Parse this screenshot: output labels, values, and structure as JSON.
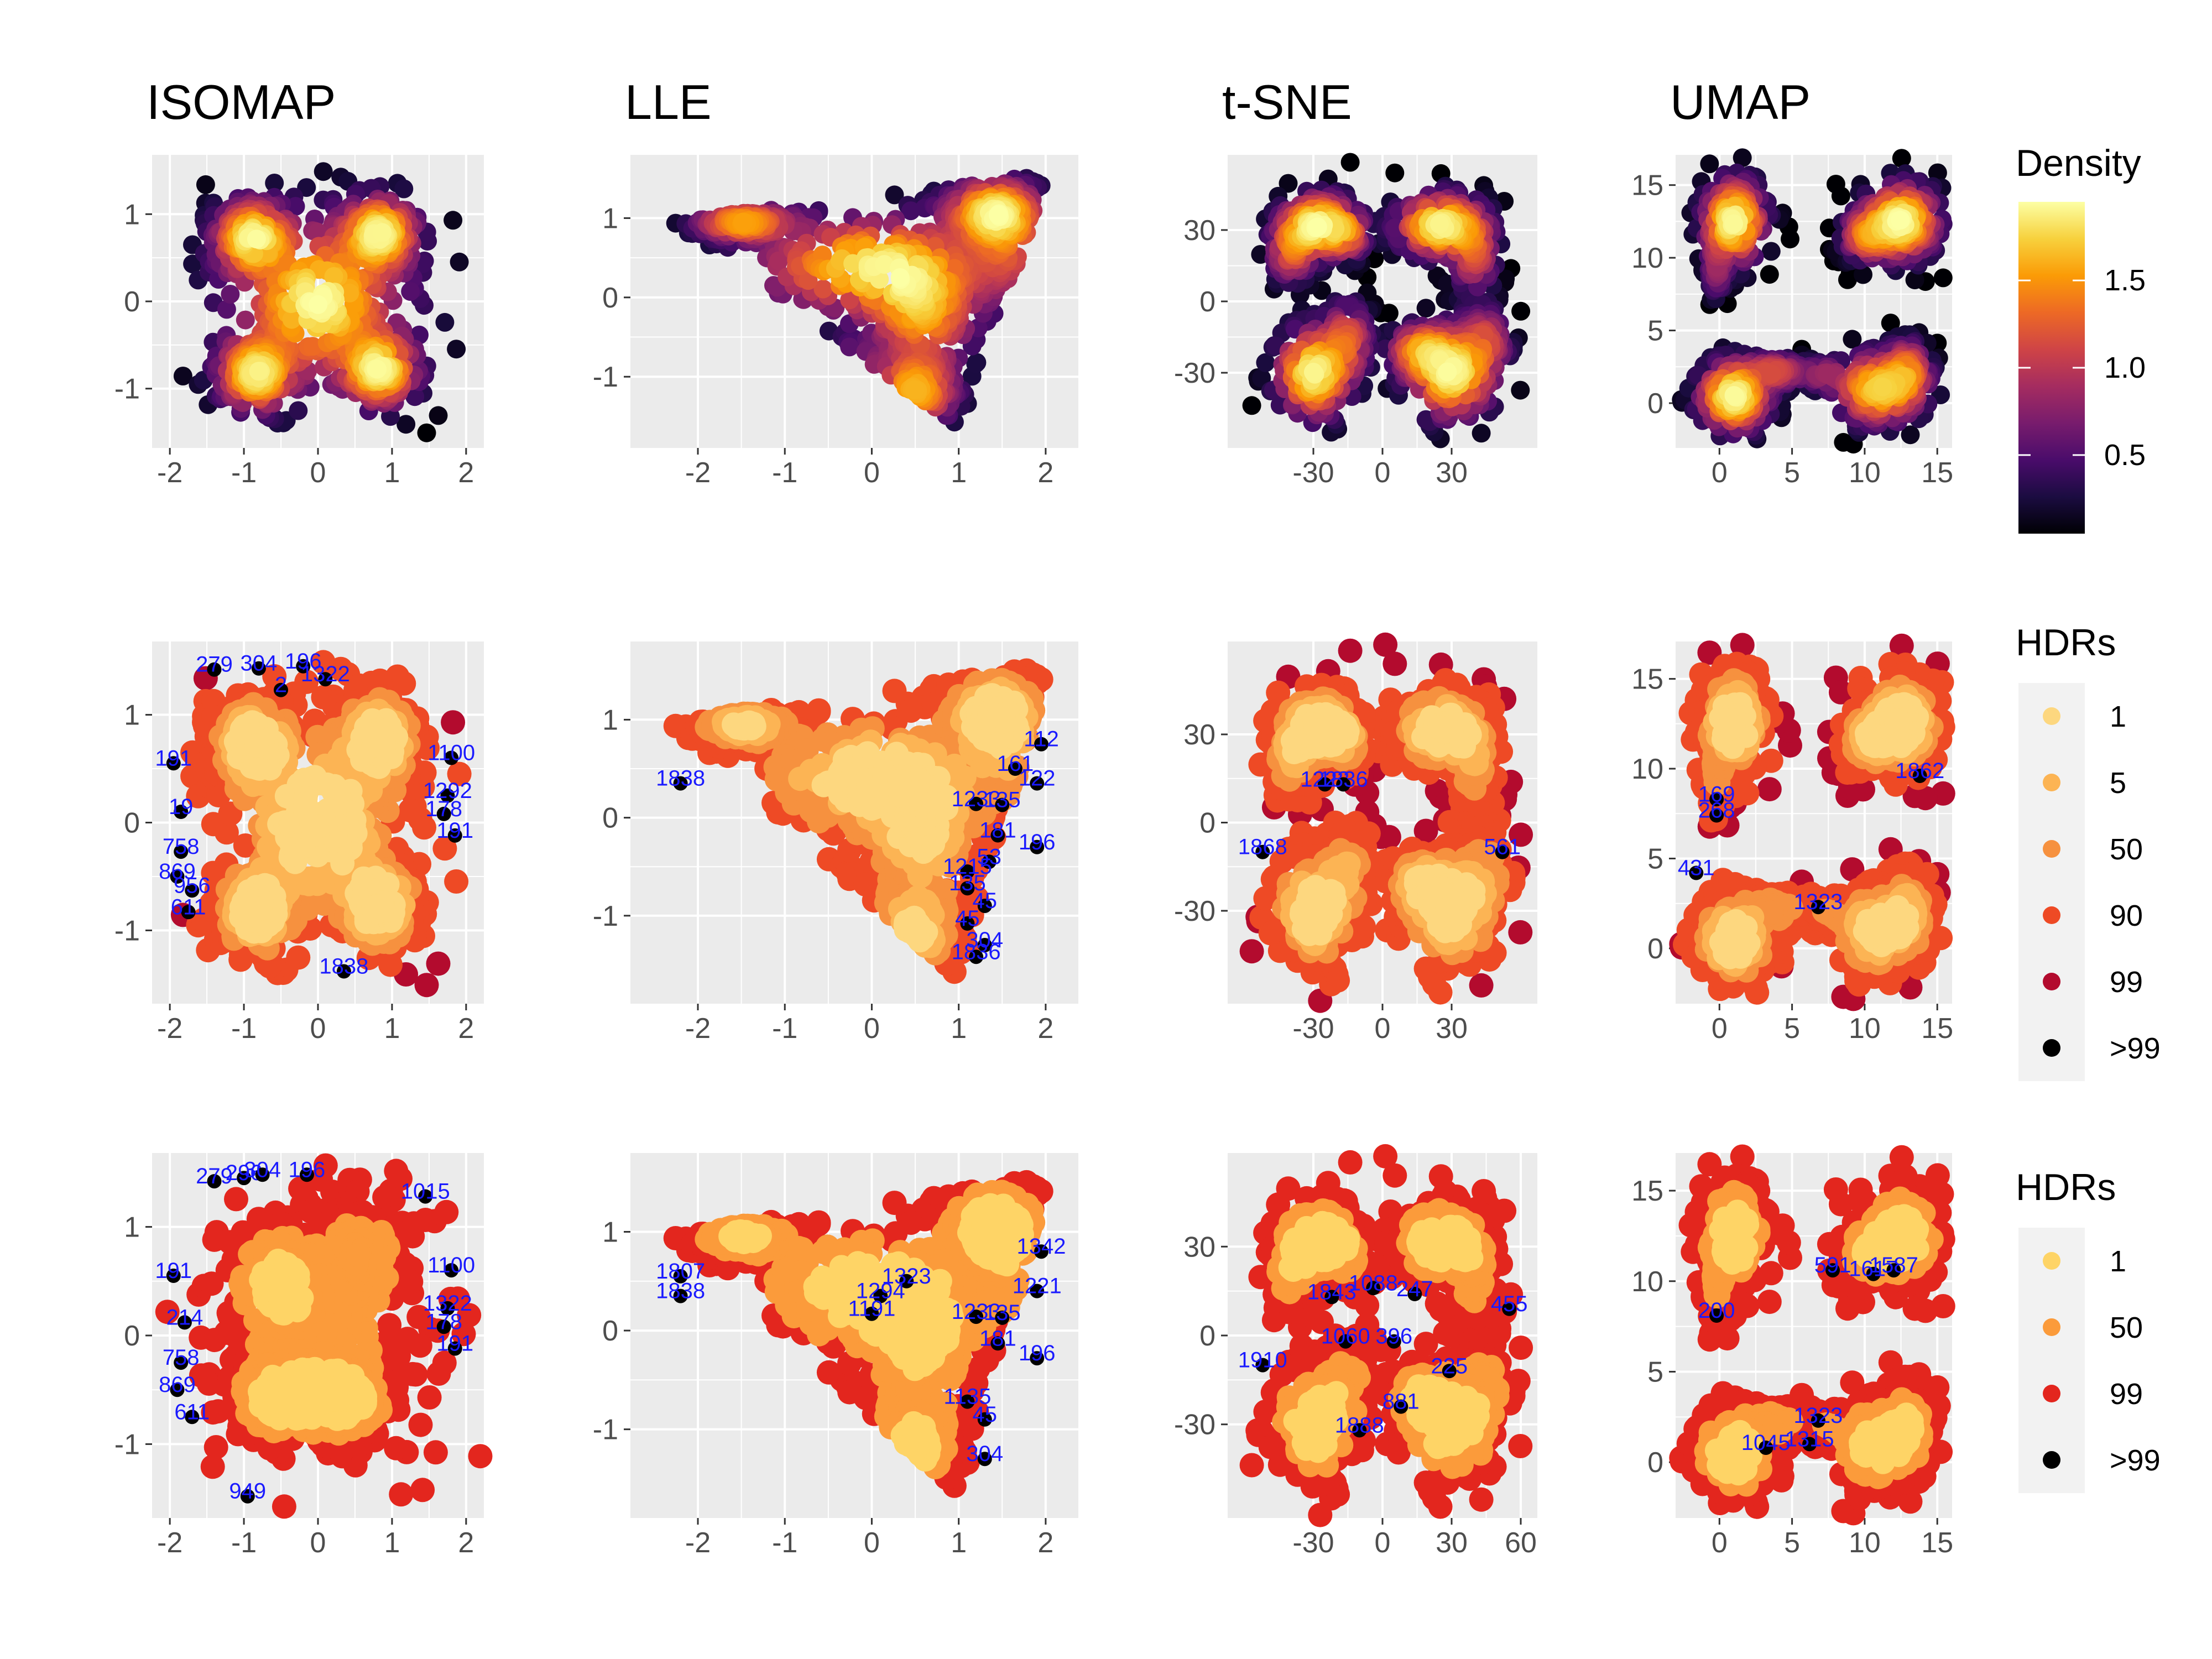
{
  "chart_data": [
    {
      "type": "scatter",
      "title": "ISOMAP",
      "row": 0,
      "col": 0,
      "color_by": "density",
      "x_ticks": [
        "-2",
        "-1",
        "0",
        "1",
        "2"
      ],
      "y_ticks": [
        "-1",
        "0",
        "1"
      ],
      "xlim": [
        -2,
        2
      ],
      "ylim": [
        -1.5,
        1.5
      ],
      "shape": "isomap"
    },
    {
      "type": "scatter",
      "title": "LLE",
      "row": 0,
      "col": 1,
      "color_by": "density",
      "x_ticks": [
        "-2",
        "-1",
        "0",
        "1",
        "2"
      ],
      "y_ticks": [
        "-1",
        "0",
        "1"
      ],
      "xlim": [
        -2.5,
        2.1
      ],
      "ylim": [
        -1.7,
        1.6
      ],
      "shape": "lle"
    },
    {
      "type": "scatter",
      "title": "t-SNE",
      "row": 0,
      "col": 2,
      "color_by": "density",
      "x_ticks": [
        "-30",
        "0",
        "30"
      ],
      "y_ticks": [
        "-30",
        "0",
        "30"
      ],
      "xlim": [
        -60,
        60
      ],
      "ylim": [
        -55,
        55
      ],
      "shape": "tsne"
    },
    {
      "type": "scatter",
      "title": "UMAP",
      "row": 0,
      "col": 3,
      "color_by": "density",
      "x_ticks": [
        "0",
        "5",
        "10",
        "15"
      ],
      "y_ticks": [
        "0",
        "5",
        "10",
        "15"
      ],
      "xlim": [
        -2,
        15
      ],
      "ylim": [
        -2,
        16
      ],
      "shape": "umap"
    },
    {
      "type": "scatter",
      "title": "",
      "row": 1,
      "col": 0,
      "color_by": "hdr6",
      "x_ticks": [
        "-2",
        "-1",
        "0",
        "1",
        "2"
      ],
      "y_ticks": [
        "-1",
        "0",
        "1"
      ],
      "xlim": [
        -2,
        2
      ],
      "ylim": [
        -1.5,
        1.5
      ],
      "shape": "isomap",
      "outliers": [
        {
          "x": -1.4,
          "y": 1.42,
          "label": "279"
        },
        {
          "x": -0.8,
          "y": 1.43,
          "label": "304"
        },
        {
          "x": -0.2,
          "y": 1.45,
          "label": "196"
        },
        {
          "x": -0.5,
          "y": 1.23,
          "label": "2"
        },
        {
          "x": 0.1,
          "y": 1.33,
          "label": "1322"
        },
        {
          "x": -1.95,
          "y": 0.55,
          "label": "191"
        },
        {
          "x": -1.85,
          "y": 0.1,
          "label": "19"
        },
        {
          "x": -1.85,
          "y": -0.27,
          "label": "758"
        },
        {
          "x": -1.9,
          "y": -0.5,
          "label": "869"
        },
        {
          "x": -1.7,
          "y": -0.63,
          "label": "956"
        },
        {
          "x": -1.75,
          "y": -0.83,
          "label": "611"
        },
        {
          "x": 0.35,
          "y": -1.38,
          "label": "1838"
        },
        {
          "x": 1.8,
          "y": 0.6,
          "label": "1100"
        },
        {
          "x": 1.75,
          "y": 0.25,
          "label": "1292"
        },
        {
          "x": 1.7,
          "y": 0.08,
          "label": "178"
        },
        {
          "x": 1.85,
          "y": -0.12,
          "label": "191"
        }
      ]
    },
    {
      "type": "scatter",
      "title": "",
      "row": 1,
      "col": 1,
      "color_by": "hdr6",
      "x_ticks": [
        "-2",
        "-1",
        "0",
        "1",
        "2"
      ],
      "y_ticks": [
        "-1",
        "0",
        "1"
      ],
      "xlim": [
        -2.5,
        2.1
      ],
      "ylim": [
        -1.7,
        1.6
      ],
      "shape": "lle",
      "outliers": [
        {
          "x": -2.2,
          "y": 0.35,
          "label": "1838"
        },
        {
          "x": 1.2,
          "y": 0.14,
          "label": "1233"
        },
        {
          "x": 1.5,
          "y": 0.13,
          "label": "135"
        },
        {
          "x": 1.95,
          "y": 0.75,
          "label": "112"
        },
        {
          "x": 1.9,
          "y": 0.35,
          "label": "122"
        },
        {
          "x": 1.65,
          "y": 0.5,
          "label": "161"
        },
        {
          "x": 1.45,
          "y": -0.18,
          "label": "181"
        },
        {
          "x": 1.9,
          "y": -0.3,
          "label": "196"
        },
        {
          "x": 1.35,
          "y": -0.45,
          "label": "53"
        },
        {
          "x": 1.1,
          "y": -0.55,
          "label": "1215"
        },
        {
          "x": 1.1,
          "y": -0.72,
          "label": "135"
        },
        {
          "x": 1.3,
          "y": -0.9,
          "label": "45"
        },
        {
          "x": 1.1,
          "y": -1.08,
          "label": "45"
        },
        {
          "x": 1.3,
          "y": -1.3,
          "label": "304"
        },
        {
          "x": 1.2,
          "y": -1.42,
          "label": "1836"
        }
      ]
    },
    {
      "type": "scatter",
      "title": "",
      "row": 1,
      "col": 2,
      "color_by": "hdr6",
      "x_ticks": [
        "-30",
        "0",
        "30"
      ],
      "y_ticks": [
        "-30",
        "0",
        "30"
      ],
      "xlim": [
        -60,
        60
      ],
      "ylim": [
        -55,
        55
      ],
      "shape": "tsne",
      "outliers": [
        {
          "x": -25,
          "y": 13,
          "label": "1222"
        },
        {
          "x": -17,
          "y": 13,
          "label": "1836"
        },
        {
          "x": -52,
          "y": -10,
          "label": "1868"
        },
        {
          "x": 52,
          "y": -10,
          "label": "561"
        }
      ]
    },
    {
      "type": "scatter",
      "title": "",
      "row": 1,
      "col": 3,
      "color_by": "hdr6",
      "x_ticks": [
        "0",
        "5",
        "10",
        "15"
      ],
      "y_ticks": [
        "0",
        "5",
        "10",
        "15"
      ],
      "xlim": [
        -2,
        15
      ],
      "ylim": [
        -2,
        16
      ],
      "shape": "umap",
      "outliers": [
        {
          "x": 13.8,
          "y": 9.6,
          "label": "1862"
        },
        {
          "x": -0.2,
          "y": 8.3,
          "label": "169"
        },
        {
          "x": -0.2,
          "y": 7.4,
          "label": "268"
        },
        {
          "x": -1.6,
          "y": 4.2,
          "label": "431"
        },
        {
          "x": 6.8,
          "y": 2.3,
          "label": "1323"
        }
      ]
    },
    {
      "type": "scatter",
      "title": "",
      "row": 2,
      "col": 0,
      "color_by": "hdr4",
      "x_ticks": [
        "-2",
        "-1",
        "0",
        "1",
        "2"
      ],
      "y_ticks": [
        "-1",
        "0",
        "1"
      ],
      "xlim": [
        -2,
        2
      ],
      "ylim": [
        -1.5,
        1.5
      ],
      "shape": "isomap2",
      "outliers": [
        {
          "x": -1.4,
          "y": 1.42,
          "label": "279"
        },
        {
          "x": -1.0,
          "y": 1.45,
          "label": "296"
        },
        {
          "x": -0.75,
          "y": 1.48,
          "label": "304"
        },
        {
          "x": -0.15,
          "y": 1.48,
          "label": "196"
        },
        {
          "x": 1.45,
          "y": 1.28,
          "label": "1015"
        },
        {
          "x": -1.95,
          "y": 0.55,
          "label": "191"
        },
        {
          "x": -1.8,
          "y": 0.12,
          "label": "214"
        },
        {
          "x": -1.85,
          "y": -0.25,
          "label": "758"
        },
        {
          "x": -1.9,
          "y": -0.5,
          "label": "869"
        },
        {
          "x": -1.7,
          "y": -0.75,
          "label": "611"
        },
        {
          "x": -0.95,
          "y": -1.48,
          "label": "949"
        },
        {
          "x": 1.8,
          "y": 0.6,
          "label": "1100"
        },
        {
          "x": 1.75,
          "y": 0.25,
          "label": "1322"
        },
        {
          "x": 1.7,
          "y": 0.08,
          "label": "178"
        },
        {
          "x": 1.85,
          "y": -0.12,
          "label": "191"
        }
      ]
    },
    {
      "type": "scatter",
      "title": "",
      "row": 2,
      "col": 1,
      "color_by": "hdr4",
      "x_ticks": [
        "-2",
        "-1",
        "0",
        "1",
        "2"
      ],
      "y_ticks": [
        "-1",
        "0",
        "1"
      ],
      "xlim": [
        -2.5,
        2.1
      ],
      "ylim": [
        -1.7,
        1.6
      ],
      "shape": "lle",
      "outliers": [
        {
          "x": -2.2,
          "y": 0.55,
          "label": "1807"
        },
        {
          "x": -2.2,
          "y": 0.35,
          "label": "1838"
        },
        {
          "x": 0.4,
          "y": 0.5,
          "label": "1323"
        },
        {
          "x": 0.1,
          "y": 0.35,
          "label": "1294"
        },
        {
          "x": 0.0,
          "y": 0.17,
          "label": "1191"
        },
        {
          "x": 1.2,
          "y": 0.14,
          "label": "1233"
        },
        {
          "x": 1.5,
          "y": 0.13,
          "label": "135"
        },
        {
          "x": 1.95,
          "y": 0.8,
          "label": "1342"
        },
        {
          "x": 1.9,
          "y": 0.4,
          "label": "1221"
        },
        {
          "x": 1.45,
          "y": -0.13,
          "label": "181"
        },
        {
          "x": 1.9,
          "y": -0.28,
          "label": "196"
        },
        {
          "x": 1.1,
          "y": -0.72,
          "label": "1135"
        },
        {
          "x": 1.3,
          "y": -0.9,
          "label": "45"
        },
        {
          "x": 1.3,
          "y": -1.3,
          "label": "304"
        }
      ]
    },
    {
      "type": "scatter",
      "title": "",
      "row": 2,
      "col": 2,
      "color_by": "hdr4",
      "x_ticks": [
        "-30",
        "0",
        "30",
        "60"
      ],
      "y_ticks": [
        "-30",
        "0",
        "30"
      ],
      "xlim": [
        -60,
        60
      ],
      "ylim": [
        -55,
        55
      ],
      "shape": "tsne",
      "outliers": [
        {
          "x": -22,
          "y": 13,
          "label": "1843"
        },
        {
          "x": -4,
          "y": 16,
          "label": "1088"
        },
        {
          "x": 14,
          "y": 14,
          "label": "247"
        },
        {
          "x": 55,
          "y": 9,
          "label": "455"
        },
        {
          "x": -16,
          "y": -2,
          "label": "1060"
        },
        {
          "x": 5,
          "y": -2,
          "label": "396"
        },
        {
          "x": -52,
          "y": -10,
          "label": "1910"
        },
        {
          "x": 29,
          "y": -12,
          "label": "225"
        },
        {
          "x": 8,
          "y": -24,
          "label": "881"
        },
        {
          "x": -10,
          "y": -32,
          "label": "1888"
        }
      ]
    },
    {
      "type": "scatter",
      "title": "",
      "row": 2,
      "col": 3,
      "color_by": "hdr4",
      "x_ticks": [
        "0",
        "5",
        "10",
        "15"
      ],
      "y_ticks": [
        "0",
        "5",
        "10",
        "15"
      ],
      "xlim": [
        -2,
        15
      ],
      "ylim": [
        -2,
        16
      ],
      "shape": "umap",
      "outliers": [
        {
          "x": 7.8,
          "y": 10.6,
          "label": "591"
        },
        {
          "x": 10.6,
          "y": 10.4,
          "label": "1617"
        },
        {
          "x": 12.0,
          "y": 10.6,
          "label": "1587"
        },
        {
          "x": -0.2,
          "y": 8.1,
          "label": "200"
        },
        {
          "x": 6.8,
          "y": 2.3,
          "label": "1323"
        },
        {
          "x": 3.2,
          "y": 0.8,
          "label": "1045"
        },
        {
          "x": 6.2,
          "y": 1.0,
          "label": "1315"
        }
      ]
    }
  ],
  "legends": {
    "density": {
      "title": "Density",
      "ticks": [
        "0.5",
        "1.0",
        "1.5"
      ],
      "tick_values": [
        0.5,
        1.0,
        1.5
      ],
      "min": 0.05,
      "max": 1.95,
      "colors": [
        "#000004",
        "#1b0c41",
        "#4a0c6b",
        "#781c6d",
        "#a52c60",
        "#cf4446",
        "#ed6925",
        "#fb9b06",
        "#f7d13d",
        "#fcffa4"
      ]
    },
    "hdr6": {
      "title": "HDRs",
      "labels": [
        "1",
        "5",
        "50",
        "90",
        "99",
        ">99"
      ],
      "colors": [
        "#fdd77f",
        "#fcb454",
        "#f6913f",
        "#ee4a25",
        "#b30b2e",
        "#000000"
      ]
    },
    "hdr4": {
      "title": "HDRs",
      "labels": [
        "1",
        "50",
        "99",
        ">99"
      ],
      "colors": [
        "#fed466",
        "#fb9b3b",
        "#e3261e",
        "#000000"
      ]
    }
  },
  "colors": {
    "panel_bg": "#ebebeb",
    "grid": "#ffffff",
    "tick": "#4d4d4d",
    "outlier_label": "#1a1aff"
  }
}
